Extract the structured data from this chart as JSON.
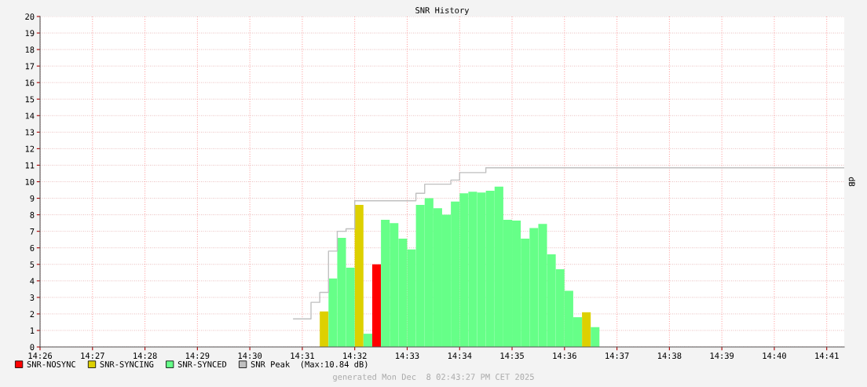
{
  "chart_data": {
    "type": "bar",
    "title": "SNR History",
    "ylabel": "dB",
    "xlim": [
      14.43333,
      14.68889
    ],
    "xticks": [
      {
        "value": 14.43333,
        "label": "14:26"
      },
      {
        "value": 14.45,
        "label": "14:27"
      },
      {
        "value": 14.46667,
        "label": "14:28"
      },
      {
        "value": 14.48333,
        "label": "14:29"
      },
      {
        "value": 14.5,
        "label": "14:30"
      },
      {
        "value": 14.51667,
        "label": "14:31"
      },
      {
        "value": 14.53333,
        "label": "14:32"
      },
      {
        "value": 14.55,
        "label": "14:33"
      },
      {
        "value": 14.56667,
        "label": "14:34"
      },
      {
        "value": 14.58333,
        "label": "14:35"
      },
      {
        "value": 14.6,
        "label": "14:36"
      },
      {
        "value": 14.61667,
        "label": "14:37"
      },
      {
        "value": 14.63333,
        "label": "14:38"
      },
      {
        "value": 14.65,
        "label": "14:39"
      },
      {
        "value": 14.66667,
        "label": "14:40"
      },
      {
        "value": 14.68333,
        "label": "14:41"
      }
    ],
    "ylim": [
      0,
      20
    ],
    "yticks": [
      0,
      1,
      2,
      3,
      4,
      5,
      6,
      7,
      8,
      9,
      10,
      11,
      12,
      13,
      14,
      15,
      16,
      17,
      18,
      19,
      20
    ],
    "grid": true,
    "legend": "bottom left",
    "series": [
      {
        "name": "SNR-NOSYNC",
        "color": "#ff0000",
        "x": [
          14.53889
        ],
        "values": [
          5.0
        ]
      },
      {
        "name": "SNR-SYNCING",
        "color": "#ddd000",
        "x": [
          14.52222,
          14.53333,
          14.60556
        ],
        "values": [
          2.15,
          8.6,
          2.1
        ]
      },
      {
        "name": "SNR-SYNCED",
        "color": "#66ff88",
        "x": [
          14.525,
          14.52778,
          14.53056,
          14.53611,
          14.54167,
          14.54444,
          14.54722,
          14.55,
          14.55278,
          14.55556,
          14.55833,
          14.56111,
          14.56389,
          14.56667,
          14.56944,
          14.57222,
          14.575,
          14.57778,
          14.58056,
          14.58333,
          14.58611,
          14.58889,
          14.59167,
          14.59444,
          14.59722,
          14.6,
          14.60278,
          14.60833
        ],
        "values": [
          4.15,
          6.6,
          4.8,
          0.8,
          7.7,
          7.5,
          6.55,
          5.9,
          8.6,
          9.0,
          8.4,
          8.0,
          8.8,
          9.3,
          9.4,
          9.35,
          9.45,
          9.7,
          7.7,
          7.65,
          6.55,
          7.2,
          7.45,
          5.6,
          4.7,
          3.4,
          1.8,
          1.2
        ]
      },
      {
        "name": "SNR Peak  (Max:10.84 dB)",
        "type": "step",
        "color": "#c0c0c0",
        "x": [
          14.51389,
          14.51944,
          14.52222,
          14.525,
          14.52778,
          14.53056,
          14.53333,
          14.55278,
          14.55556,
          14.56389,
          14.56667,
          14.575,
          14.68889
        ],
        "values": [
          1.7,
          2.7,
          3.3,
          5.8,
          7.0,
          7.15,
          8.85,
          9.3,
          9.85,
          10.1,
          10.55,
          10.84,
          10.84
        ]
      }
    ],
    "annotations": [
      "generated Mon Dec  8 02:43:27 PM CET 2025"
    ]
  }
}
